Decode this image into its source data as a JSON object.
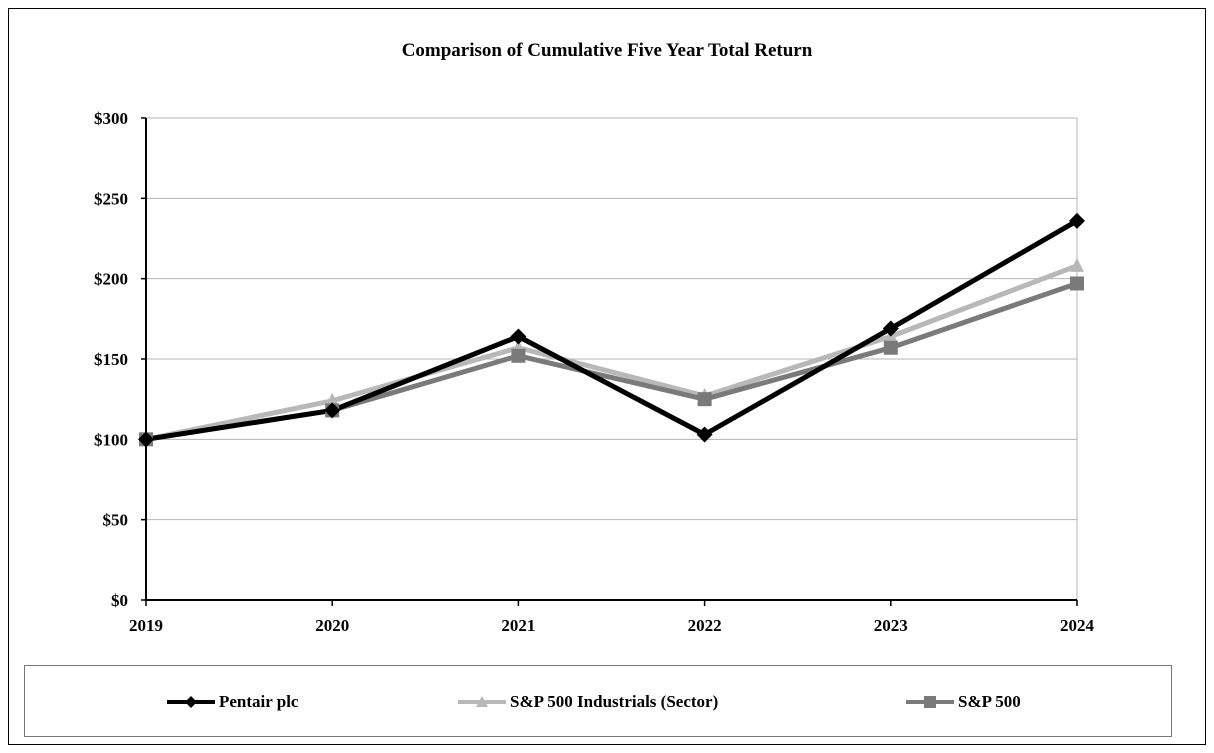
{
  "chart_data": {
    "type": "line",
    "title": "Comparison of Cumulative Five Year Total Return",
    "x": [
      "2019",
      "2020",
      "2021",
      "2022",
      "2023",
      "2024"
    ],
    "ylim": [
      0,
      300
    ],
    "yticks": [
      0,
      50,
      100,
      150,
      200,
      250,
      300
    ],
    "ytick_labels": [
      "$0",
      "$50",
      "$100",
      "$150",
      "$200",
      "$250",
      "$300"
    ],
    "grid": true,
    "legend_position": "bottom",
    "series": [
      {
        "name": "Pentair plc",
        "values": [
          100,
          118,
          164,
          103,
          169,
          236
        ],
        "color": "#000000",
        "marker": "diamond"
      },
      {
        "name": "S&P 500 Industrials (Sector)",
        "values": [
          100,
          124,
          157,
          127,
          164,
          208
        ],
        "color": "#b8b8b8",
        "marker": "triangle"
      },
      {
        "name": "S&P 500",
        "values": [
          100,
          118,
          152,
          125,
          157,
          197
        ],
        "color": "#7a7a7a",
        "marker": "square"
      }
    ]
  }
}
